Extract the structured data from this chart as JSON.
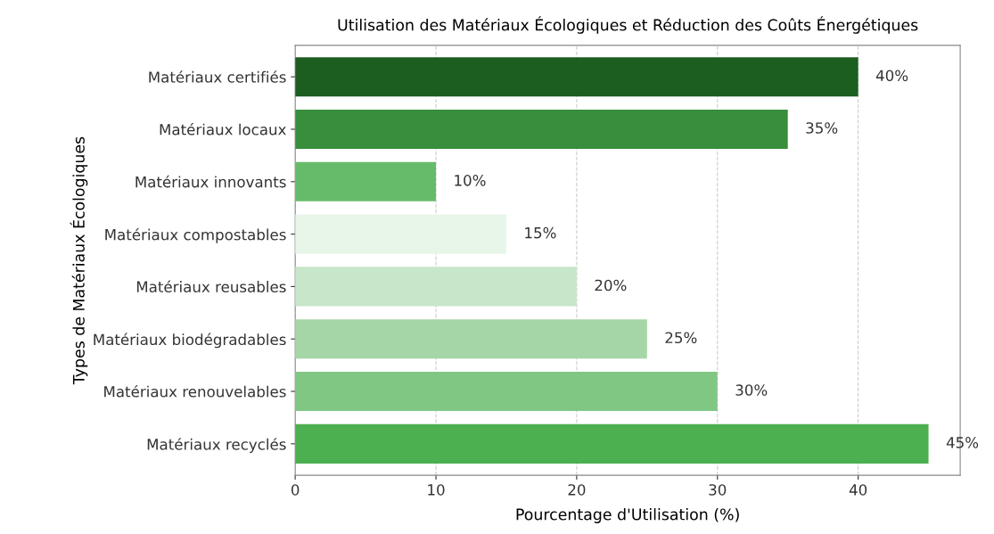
{
  "chart_data": {
    "type": "bar",
    "orientation": "horizontal",
    "title": "Utilisation des Matériaux Écologiques et Réduction des Coûts Énergétiques",
    "xlabel": "Pourcentage d'Utilisation (%)",
    "ylabel": "Types de Matériaux Écologiques",
    "categories": [
      "Matériaux certifiés",
      "Matériaux locaux",
      "Matériaux innovants",
      "Matériaux compostables",
      "Matériaux reusables",
      "Matériaux biodégradables",
      "Matériaux renouvelables",
      "Matériaux recyclés"
    ],
    "values": [
      40,
      35,
      10,
      15,
      20,
      25,
      30,
      45
    ],
    "colors": [
      "#1b5e20",
      "#388e3c",
      "#66bb6a",
      "#e8f5e9",
      "#c8e6c9",
      "#a5d6a7",
      "#81c784",
      "#4caf50"
    ],
    "value_labels": [
      "40%",
      "35%",
      "10%",
      "15%",
      "20%",
      "25%",
      "30%",
      "45%"
    ],
    "xlim": [
      0,
      47.25
    ],
    "xticks": [
      0,
      10,
      20,
      30,
      40
    ],
    "grid": "x"
  }
}
